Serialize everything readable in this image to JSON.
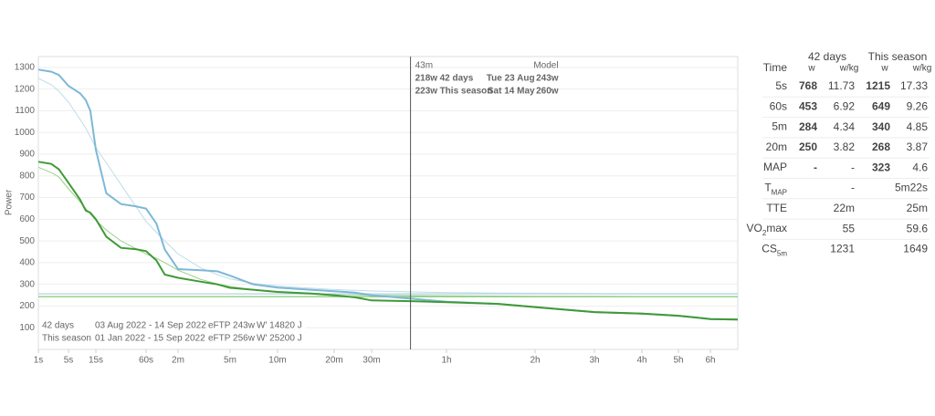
{
  "chart_data": {
    "type": "line",
    "y_label": "Power",
    "x": [
      1,
      2,
      3,
      5,
      8,
      10,
      12,
      15,
      20,
      30,
      45,
      60,
      75,
      90,
      120,
      180,
      240,
      300,
      420,
      600,
      900,
      1200,
      1500,
      1800,
      2700,
      3600,
      5400,
      7200,
      10800,
      14400,
      18000,
      21600,
      25200
    ],
    "series": [
      {
        "name": "42 days",
        "color": "#3f9a36",
        "model_color": "#9ad18c",
        "values": [
          865,
          855,
          830,
          768,
          690,
          640,
          630,
          600,
          520,
          468,
          462,
          453,
          410,
          345,
          330,
          312,
          300,
          284,
          275,
          265,
          258,
          250,
          240,
          226,
          222,
          218,
          210,
          195,
          172,
          165,
          155,
          140,
          138
        ],
        "model": [
          840,
          815,
          795,
          740,
          680,
          650,
          625,
          595,
          550,
          500,
          465,
          440,
          420,
          400,
          365,
          322,
          302,
          290,
          275,
          266,
          259,
          255,
          252,
          250,
          248,
          247,
          246,
          245,
          245,
          244,
          244,
          244,
          244
        ],
        "date_range": "03 Aug 2022 - 14 Sep 2022",
        "eftp": 243,
        "eftp_label": "eFTP 243w",
        "wprime_label": "W' 14820 J"
      },
      {
        "name": "This season",
        "color": "#7db8d6",
        "model_color": "#bfdcea",
        "values": [
          1290,
          1280,
          1265,
          1215,
          1180,
          1150,
          1100,
          920,
          720,
          670,
          660,
          649,
          580,
          460,
          370,
          365,
          360,
          340,
          300,
          285,
          275,
          268,
          262,
          250,
          232,
          220,
          210,
          195,
          172,
          165,
          155,
          140,
          138
        ],
        "model": [
          1250,
          1220,
          1190,
          1140,
          1060,
          1020,
          980,
          930,
          860,
          760,
          660,
          590,
          540,
          500,
          440,
          375,
          345,
          325,
          305,
          292,
          282,
          276,
          272,
          269,
          265,
          262,
          260,
          259,
          258,
          257,
          257,
          257,
          257
        ],
        "date_range": "01 Jan 2022 - 15 Sep 2022",
        "eftp": 256,
        "eftp_label": "eFTP 256w",
        "wprime_label": "W' 25200 J"
      }
    ],
    "xlim": [
      1,
      25200
    ],
    "xticks": [
      {
        "value": 1,
        "label": "1s"
      },
      {
        "value": 5,
        "label": "5s"
      },
      {
        "value": 15,
        "label": "15s"
      },
      {
        "value": 60,
        "label": "60s"
      },
      {
        "value": 120,
        "label": "2m"
      },
      {
        "value": 300,
        "label": "5m"
      },
      {
        "value": 600,
        "label": "10m"
      },
      {
        "value": 1200,
        "label": "20m"
      },
      {
        "value": 1800,
        "label": "30m"
      },
      {
        "value": 3600,
        "label": "1h"
      },
      {
        "value": 7200,
        "label": "2h"
      },
      {
        "value": 10800,
        "label": "3h"
      },
      {
        "value": 14400,
        "label": "4h"
      },
      {
        "value": 18000,
        "label": "5h"
      },
      {
        "value": 21600,
        "label": "6h"
      }
    ],
    "ylim": [
      0,
      1350
    ],
    "yticks": [
      100,
      200,
      300,
      400,
      500,
      600,
      700,
      800,
      900,
      1000,
      1100,
      1200,
      1300
    ],
    "grid": true,
    "cursor": {
      "value": 2580,
      "label": "43m",
      "header": "Model",
      "rows": [
        {
          "value": "218w",
          "name": "42 days",
          "date": "Tue 23 Aug",
          "model": "243w"
        },
        {
          "value": "223w",
          "name": "This season",
          "date": "Sat 14 May",
          "model": "260w"
        }
      ]
    }
  },
  "table": {
    "groups": [
      "42 days",
      "This season"
    ],
    "columns": [
      "Time",
      "w",
      "w/kg",
      "w",
      "w/kg"
    ],
    "rows": [
      {
        "label": "5s",
        "cells": [
          "768",
          "11.73",
          "1215",
          "17.33"
        ]
      },
      {
        "label": "60s",
        "cells": [
          "453",
          "6.92",
          "649",
          "9.26"
        ]
      },
      {
        "label": "5m",
        "cells": [
          "284",
          "4.34",
          "340",
          "4.85"
        ]
      },
      {
        "label": "20m",
        "cells": [
          "250",
          "3.82",
          "268",
          "3.87"
        ]
      },
      {
        "label": "MAP",
        "cells": [
          "-",
          "-",
          "323",
          "4.6"
        ]
      },
      {
        "label": "T",
        "sub": "MAP",
        "cells": [
          null,
          "-",
          null,
          "5m22s"
        ]
      },
      {
        "label": "TTE",
        "cells": [
          null,
          "22m",
          null,
          "25m"
        ]
      },
      {
        "label": "VO",
        "sub": "2",
        "after": "max",
        "cells": [
          null,
          "55",
          null,
          "59.6"
        ]
      },
      {
        "label": "CS",
        "sub": "5m",
        "cells": [
          null,
          "1231",
          null,
          "1649"
        ]
      }
    ]
  }
}
